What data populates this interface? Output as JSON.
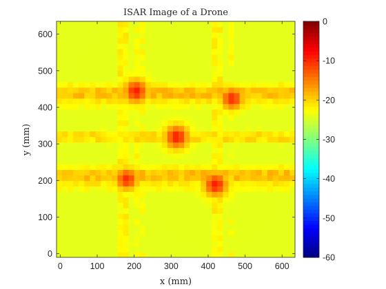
{
  "chart_data": {
    "type": "heatmap",
    "title": "ISAR Image of a Drone",
    "xlabel": "x (mm)",
    "ylabel": "y (mm)",
    "xlim": [
      -10,
      635
    ],
    "ylim": [
      -10,
      635
    ],
    "xticks": [
      0,
      100,
      200,
      300,
      400,
      500,
      600
    ],
    "yticks": [
      0,
      100,
      200,
      300,
      400,
      500,
      600
    ],
    "colorbar": {
      "colormap": "jet",
      "clim": [
        -60,
        0
      ],
      "ticks": [
        0,
        -10,
        -20,
        -30,
        -40,
        -50,
        -60
      ],
      "unit": ""
    },
    "grid_step_mm": 15,
    "background_level_db": -30,
    "rails": [
      {
        "orientation": "horizontal",
        "center_mm": 435,
        "halfwidth_mm": 15,
        "peak_db": -19
      },
      {
        "orientation": "horizontal",
        "center_mm": 210,
        "halfwidth_mm": 15,
        "peak_db": -19
      },
      {
        "orientation": "horizontal",
        "center_mm": 320,
        "halfwidth_mm": 8,
        "peak_db": -21
      },
      {
        "orientation": "vertical",
        "center_mm": 175,
        "halfwidth_mm": 15,
        "peak_db": -22
      },
      {
        "orientation": "vertical",
        "center_mm": 215,
        "halfwidth_mm": 12,
        "peak_db": -23
      },
      {
        "orientation": "vertical",
        "center_mm": 425,
        "halfwidth_mm": 15,
        "peak_db": -22
      },
      {
        "orientation": "vertical",
        "center_mm": 460,
        "halfwidth_mm": 12,
        "peak_db": -23
      }
    ],
    "peaks": [
      {
        "x_mm": 205,
        "y_mm": 445,
        "level_db": -9
      },
      {
        "x_mm": 465,
        "y_mm": 425,
        "level_db": -10
      },
      {
        "x_mm": 180,
        "y_mm": 205,
        "level_db": -10
      },
      {
        "x_mm": 420,
        "y_mm": 190,
        "level_db": -9
      },
      {
        "x_mm": 315,
        "y_mm": 320,
        "level_db": -9
      }
    ],
    "quiet_regions": [
      {
        "x_mm": [
          230,
          400
        ],
        "y_mm": [
          230,
          400
        ],
        "level_db": -33
      },
      {
        "x_mm": [
          10,
          150
        ],
        "y_mm": [
          20,
          150
        ],
        "level_db": -33
      },
      {
        "x_mm": [
          500,
          620
        ],
        "y_mm": [
          20,
          150
        ],
        "level_db": -33
      }
    ]
  }
}
